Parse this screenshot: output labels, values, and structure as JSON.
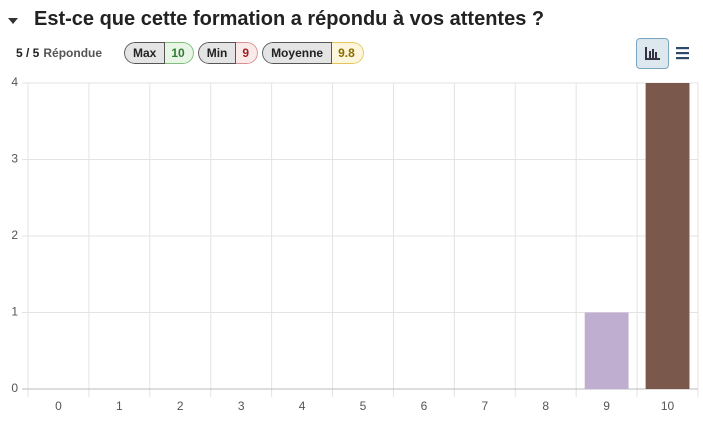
{
  "header": {
    "title": "Est-ce que cette formation a répondu à vos attentes ?"
  },
  "stats": {
    "responses": "5 / 5",
    "responses_label": "Répondue",
    "badges": [
      {
        "label": "Max",
        "value": 10
      },
      {
        "label": "Min",
        "value": 9
      },
      {
        "label": "Moyenne",
        "value": 9.8
      }
    ]
  },
  "chart_data": {
    "type": "bar",
    "categories": [
      "0",
      "1",
      "2",
      "3",
      "4",
      "5",
      "6",
      "7",
      "8",
      "9",
      "10"
    ],
    "values": [
      0,
      0,
      0,
      0,
      0,
      0,
      0,
      0,
      0,
      1,
      4
    ],
    "colors": [
      null,
      null,
      null,
      null,
      null,
      null,
      null,
      null,
      null,
      "#c0aed0",
      "#7b584c"
    ],
    "ylim": [
      0,
      4
    ],
    "yticks": [
      0,
      1,
      2,
      3,
      4
    ],
    "grid": true
  }
}
